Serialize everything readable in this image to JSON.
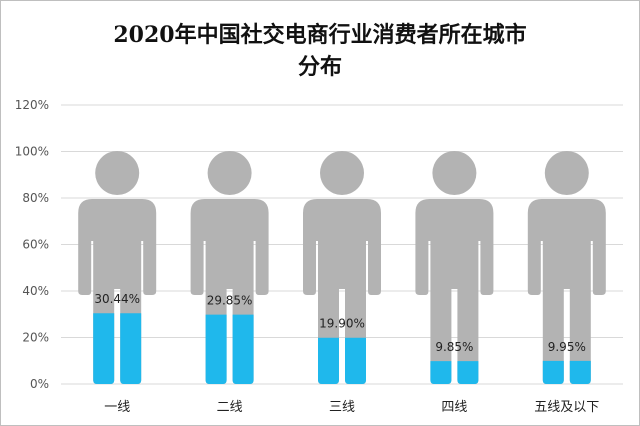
{
  "chart_data": {
    "type": "bar",
    "title": "2020年中国社交电商行业消费者所在城市分布",
    "title_lines": [
      "2020年中国社交电商行业消费者所在城市",
      "分布"
    ],
    "categories": [
      "一线",
      "二线",
      "三线",
      "四线",
      "五线及以下"
    ],
    "values": [
      30.44,
      29.85,
      19.9,
      9.85,
      9.95
    ],
    "value_labels": [
      "30.44%",
      "29.85%",
      "19.90%",
      "9.85%",
      "9.95%"
    ],
    "ylim": [
      0,
      120
    ],
    "yticks": [
      0,
      20,
      40,
      60,
      80,
      100,
      120
    ],
    "ytick_labels": [
      "0%",
      "20%",
      "40%",
      "60%",
      "80%",
      "100%",
      "120%"
    ],
    "grid": true,
    "style": "pictograph-person-fill",
    "colors": {
      "fill": "#1fb8ec",
      "figure": "#b3b3b3",
      "grid": "#d9d9d9"
    }
  }
}
